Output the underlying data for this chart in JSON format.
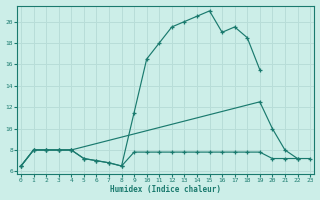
{
  "xlim": [
    -0.3,
    23.3
  ],
  "ylim": [
    5.8,
    21.5
  ],
  "yticks": [
    6,
    8,
    10,
    12,
    14,
    16,
    18,
    20
  ],
  "xticks": [
    0,
    1,
    2,
    3,
    4,
    5,
    6,
    7,
    8,
    9,
    10,
    11,
    12,
    13,
    14,
    15,
    16,
    17,
    18,
    19,
    20,
    21,
    22,
    23
  ],
  "xlabel": "Humidex (Indice chaleur)",
  "bg_color": "#cceee8",
  "line_color": "#1a7a6e",
  "grid_color": "#b8ddd8",
  "line1_x": [
    0,
    1,
    2,
    3,
    4,
    5,
    6,
    7,
    8,
    9,
    10,
    11,
    12,
    13,
    14,
    15,
    16,
    17,
    18,
    19
  ],
  "line1_y": [
    6.5,
    8.0,
    8.0,
    8.0,
    8.0,
    7.2,
    7.0,
    6.8,
    6.5,
    11.5,
    16.5,
    18.0,
    19.5,
    20.0,
    20.5,
    21.0,
    19.0,
    19.5,
    18.5,
    15.5
  ],
  "line2_x": [
    0,
    1,
    2,
    3,
    4,
    19,
    20,
    21,
    22
  ],
  "line2_y": [
    6.5,
    8.0,
    8.0,
    8.0,
    8.0,
    12.5,
    10.0,
    8.0,
    7.2
  ],
  "line3_x": [
    0,
    1,
    2,
    3,
    4,
    5,
    6,
    7,
    8,
    9,
    10,
    11,
    12,
    13,
    14,
    15,
    16,
    17,
    18,
    19,
    20,
    21,
    22,
    23
  ],
  "line3_y": [
    6.5,
    8.0,
    8.0,
    8.0,
    8.0,
    7.2,
    7.0,
    6.8,
    6.5,
    7.8,
    7.8,
    7.8,
    7.8,
    7.8,
    7.8,
    7.8,
    7.8,
    7.8,
    7.8,
    7.8,
    7.2,
    7.2,
    7.2,
    7.2
  ]
}
